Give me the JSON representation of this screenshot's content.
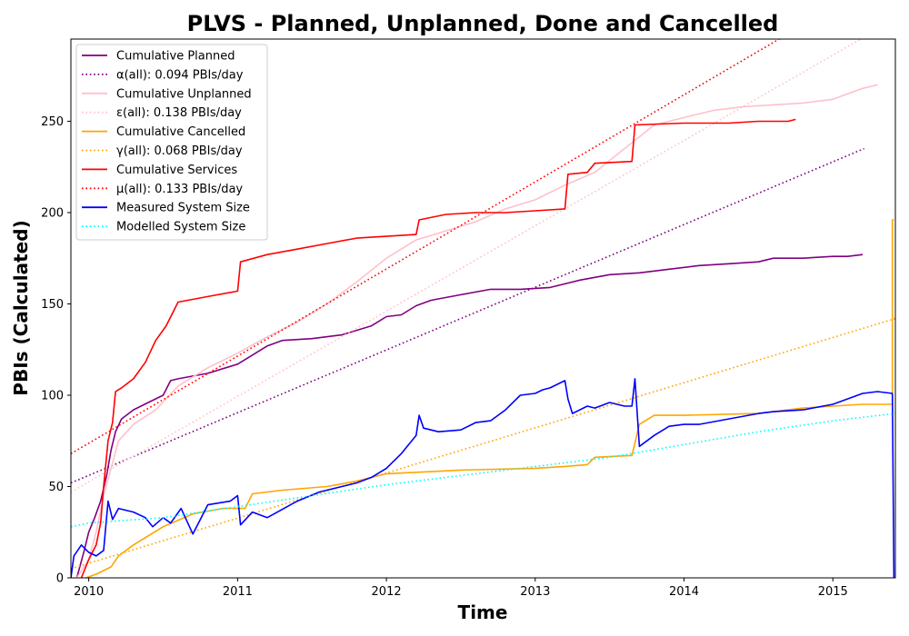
{
  "chart_data": {
    "type": "line",
    "title": "PLVS - Planned, Unplanned, Done  and Cancelled",
    "xlabel": "Time",
    "ylabel": "PBIs (Calculated)",
    "xlim": [
      2009.88,
      2015.42
    ],
    "ylim": [
      0,
      295
    ],
    "x_ticks": [
      2010,
      2011,
      2012,
      2013,
      2014,
      2015
    ],
    "y_ticks": [
      0,
      50,
      100,
      150,
      200,
      250
    ],
    "grid": false,
    "legend": "top-left",
    "series": [
      {
        "name": "Cumulative Planned",
        "color": "#800080",
        "style": "solid",
        "x": [
          2009.92,
          2009.97,
          2010.0,
          2010.04,
          2010.08,
          2010.12,
          2010.15,
          2010.18,
          2010.22,
          2010.3,
          2010.4,
          2010.5,
          2010.55,
          2010.6,
          2010.8,
          2011.0,
          2011.1,
          2011.2,
          2011.3,
          2011.5,
          2011.7,
          2011.9,
          2012.0,
          2012.1,
          2012.2,
          2012.3,
          2012.5,
          2012.7,
          2012.9,
          2013.1,
          2013.3,
          2013.5,
          2013.7,
          2013.9,
          2014.1,
          2014.3,
          2014.5,
          2014.6,
          2014.8,
          2015.0,
          2015.1,
          2015.2
        ],
        "y": [
          0,
          15,
          25,
          33,
          42,
          56,
          70,
          80,
          87,
          92,
          96,
          100,
          108,
          109,
          112,
          117,
          122,
          127,
          130,
          131,
          133,
          138,
          143,
          144,
          149,
          152,
          155,
          158,
          158,
          159,
          163,
          166,
          167,
          169,
          171,
          172,
          173,
          175,
          175,
          176,
          176,
          177
        ]
      },
      {
        "name": "α(all): 0.094 PBIs/day",
        "color": "#800080",
        "style": "dotted",
        "x": [
          2009.88,
          2015.21
        ],
        "y": [
          52,
          235
        ]
      },
      {
        "name": "Cumulative Unplanned",
        "color": "#ffc0cb",
        "style": "solid",
        "x": [
          2009.92,
          2010.0,
          2010.05,
          2010.1,
          2010.15,
          2010.2,
          2010.3,
          2010.45,
          2010.6,
          2010.8,
          2011.0,
          2011.2,
          2011.4,
          2011.6,
          2011.8,
          2012.0,
          2012.2,
          2012.4,
          2012.6,
          2012.8,
          2013.0,
          2013.2,
          2013.4,
          2013.6,
          2013.8,
          2014.0,
          2014.2,
          2014.4,
          2014.6,
          2014.8,
          2015.0,
          2015.2,
          2015.3
        ],
        "y": [
          0,
          10,
          25,
          45,
          60,
          75,
          84,
          92,
          105,
          115,
          123,
          132,
          140,
          150,
          162,
          175,
          185,
          190,
          195,
          202,
          207,
          215,
          222,
          235,
          248,
          252,
          256,
          258,
          259,
          260,
          262,
          268,
          270
        ]
      },
      {
        "name": "ε(all): 0.138 PBIs/day",
        "color": "#ffc0cb",
        "style": "dotted",
        "x": [
          2009.88,
          2015.21
        ],
        "y": [
          47,
          296
        ]
      },
      {
        "name": "Cumulative Cancelled",
        "color": "#ffa500",
        "style": "solid",
        "x": [
          2009.98,
          2010.05,
          2010.1,
          2010.15,
          2010.2,
          2010.3,
          2010.5,
          2010.7,
          2010.9,
          2011.05,
          2011.1,
          2011.3,
          2011.6,
          2011.8,
          2012.0,
          2012.5,
          2013.0,
          2013.2,
          2013.35,
          2013.4,
          2013.65,
          2013.7,
          2013.8,
          2014.0,
          2014.5,
          2014.8,
          2015.0,
          2015.2,
          2015.4,
          2015.4,
          2015.41
        ],
        "y": [
          0,
          2,
          4,
          6,
          12,
          18,
          28,
          35,
          38,
          38,
          46,
          48,
          50,
          53,
          57,
          59,
          60,
          61,
          62,
          66,
          67,
          84,
          89,
          89,
          90,
          93,
          94,
          95,
          95,
          196,
          196
        ]
      },
      {
        "name": "γ(all): 0.068 PBIs/day",
        "color": "#ffa500",
        "style": "dotted",
        "x": [
          2009.88,
          2015.42
        ],
        "y": [
          5,
          142
        ]
      },
      {
        "name": "Cumulative Services",
        "color": "#ff0000",
        "style": "solid",
        "x": [
          2009.95,
          2010.0,
          2010.05,
          2010.08,
          2010.1,
          2010.13,
          2010.16,
          2010.18,
          2010.22,
          2010.3,
          2010.38,
          2010.45,
          2010.52,
          2010.6,
          2010.8,
          2011.0,
          2011.02,
          2011.2,
          2011.4,
          2011.6,
          2011.8,
          2012.0,
          2012.2,
          2012.22,
          2012.4,
          2012.6,
          2012.8,
          2013.0,
          2013.2,
          2013.22,
          2013.35,
          2013.4,
          2013.65,
          2013.67,
          2014.0,
          2014.3,
          2014.5,
          2014.7,
          2014.75
        ],
        "y": [
          0,
          10,
          18,
          30,
          50,
          75,
          85,
          102,
          104,
          109,
          118,
          130,
          138,
          151,
          154,
          157,
          173,
          177,
          180,
          183,
          186,
          187,
          188,
          196,
          199,
          200,
          200,
          201,
          202,
          221,
          222,
          227,
          228,
          248,
          249,
          249,
          250,
          250,
          251
        ]
      },
      {
        "name": "μ(all): 0.133 PBIs/day",
        "color": "#ff0000",
        "style": "dotted",
        "x": [
          2009.88,
          2014.66
        ],
        "y": [
          68,
          296
        ]
      },
      {
        "name": "Measured System Size",
        "color": "#0000ff",
        "style": "solid",
        "x": [
          2009.88,
          2009.9,
          2009.95,
          2010.0,
          2010.05,
          2010.1,
          2010.13,
          2010.16,
          2010.2,
          2010.3,
          2010.38,
          2010.43,
          2010.5,
          2010.55,
          2010.62,
          2010.7,
          2010.8,
          2010.95,
          2011.0,
          2011.02,
          2011.1,
          2011.2,
          2011.4,
          2011.55,
          2011.7,
          2011.8,
          2011.9,
          2012.0,
          2012.1,
          2012.2,
          2012.22,
          2012.25,
          2012.35,
          2012.5,
          2012.6,
          2012.7,
          2012.8,
          2012.9,
          2013.0,
          2013.05,
          2013.1,
          2013.2,
          2013.22,
          2013.25,
          2013.35,
          2013.4,
          2013.5,
          2013.6,
          2013.65,
          2013.67,
          2013.7,
          2013.8,
          2013.9,
          2014.0,
          2014.1,
          2014.3,
          2014.5,
          2014.6,
          2014.8,
          2015.0,
          2015.2,
          2015.3,
          2015.4,
          2015.41
        ],
        "y": [
          0,
          12,
          18,
          14,
          12,
          15,
          42,
          32,
          38,
          36,
          33,
          28,
          33,
          30,
          38,
          24,
          40,
          42,
          45,
          29,
          36,
          33,
          42,
          47,
          50,
          52,
          55,
          60,
          68,
          78,
          89,
          82,
          80,
          81,
          85,
          86,
          92,
          100,
          101,
          103,
          104,
          108,
          98,
          90,
          94,
          93,
          96,
          94,
          94,
          109,
          72,
          78,
          83,
          84,
          84,
          87,
          90,
          91,
          92,
          95,
          101,
          102,
          101,
          0
        ]
      },
      {
        "name": "Modelled System Size",
        "color": "#00ffff",
        "style": "dotted",
        "x": [
          2009.88,
          2010.0,
          2010.5,
          2011.0,
          2011.5,
          2012.0,
          2012.5,
          2013.0,
          2013.5,
          2014.0,
          2014.5,
          2015.0,
          2015.42
        ],
        "y": [
          28,
          30,
          33,
          39,
          45,
          51,
          56,
          61,
          66,
          73,
          80,
          86,
          90
        ]
      }
    ]
  }
}
